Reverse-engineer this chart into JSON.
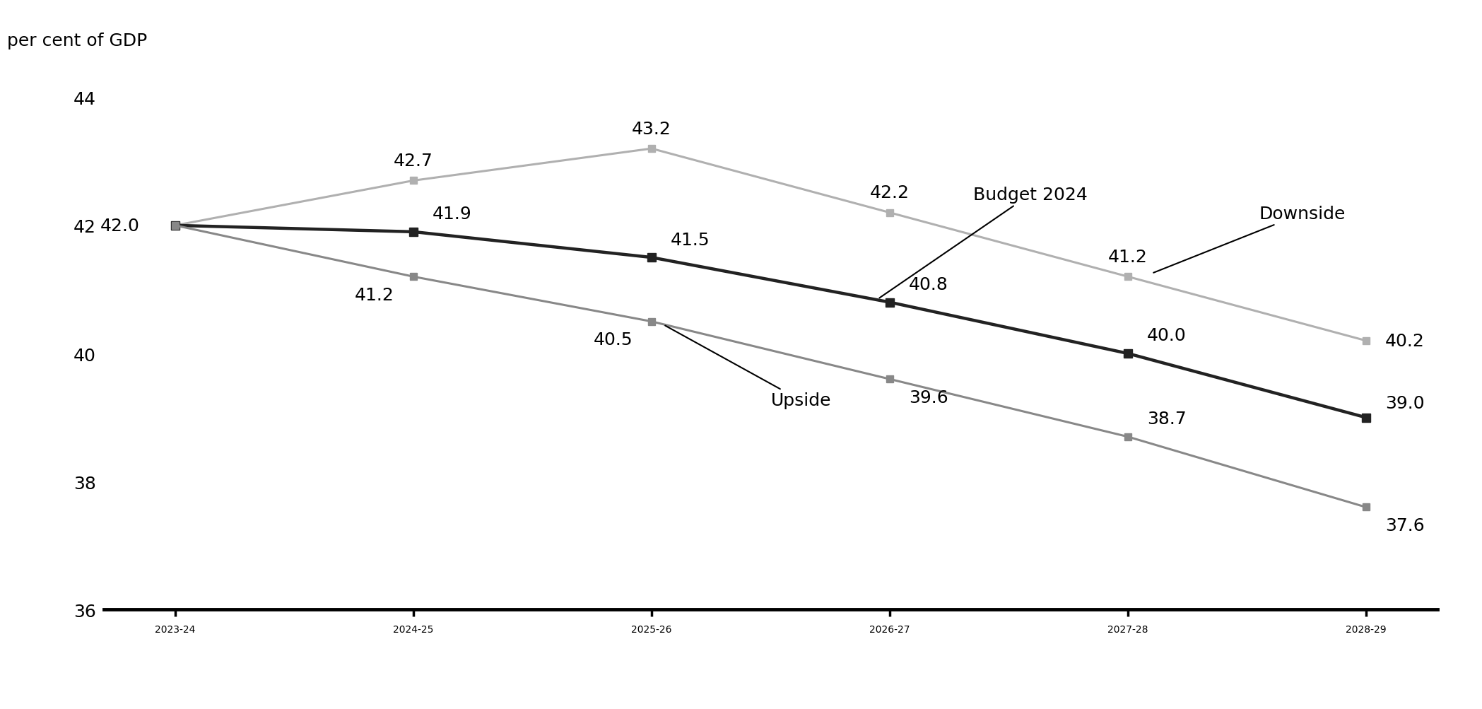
{
  "ylabel": "per cent of GDP",
  "categories": [
    "2023-24",
    "2024-25",
    "2025-26",
    "2026-27",
    "2027-28",
    "2028-29"
  ],
  "series": {
    "Downside": {
      "values": [
        42.0,
        42.7,
        43.2,
        42.2,
        41.2,
        40.2
      ],
      "color": "#b0b0b0",
      "linewidth": 2.2,
      "marker": "s",
      "markersize": 7
    },
    "Budget 2024": {
      "values": [
        42.0,
        41.9,
        41.5,
        40.8,
        40.0,
        39.0
      ],
      "color": "#222222",
      "linewidth": 3.2,
      "marker": "s",
      "markersize": 8
    },
    "Upside": {
      "values": [
        42.0,
        41.2,
        40.5,
        39.6,
        38.7,
        37.6
      ],
      "color": "#888888",
      "linewidth": 2.2,
      "marker": "s",
      "markersize": 7
    }
  },
  "ylim": [
    36,
    44.2
  ],
  "yticks": [
    36,
    38,
    40,
    42,
    44
  ],
  "background_color": "#ffffff",
  "tick_fontsize": 18,
  "annotation_fontsize": 18,
  "data_label_fontsize": 18
}
